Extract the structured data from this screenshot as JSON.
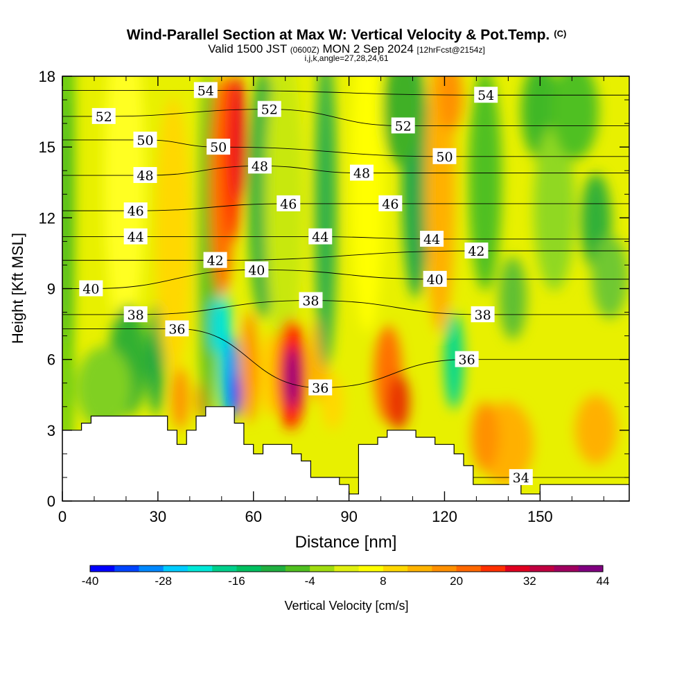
{
  "title": "Wind-Parallel Section at Max W: Vertical Velocity & Pot.Temp.",
  "title_mark": "(C)",
  "subtitle": {
    "pre": "Valid 1500 JST",
    "utc": "(0600Z)",
    "date": "MON 2 Sep 2024",
    "fcst": "[12hrFcst@2154z]"
  },
  "indices_line": "i,j,k,angle=27,28,24,61",
  "chart_data": {
    "type": "heatmap",
    "xlabel": "Distance [nm]",
    "ylabel": "Height [Kft MSL]",
    "xlim": [
      0,
      178
    ],
    "ylim": [
      0,
      18
    ],
    "x_ticks": [
      "0",
      "30",
      "60",
      "90",
      "120",
      "150"
    ],
    "y_ticks": [
      "0",
      "3",
      "6",
      "9",
      "12",
      "15",
      "18"
    ],
    "colorbar": {
      "label": "Vertical Velocity [cm/s]",
      "min": -40,
      "max": 44,
      "step": 4,
      "tick_labels": [
        "-40",
        "-28",
        "-16",
        "-4",
        "8",
        "20",
        "32",
        "44"
      ],
      "colors": [
        "#0000ff",
        "#0044ff",
        "#0088ff",
        "#00ccff",
        "#00e8d8",
        "#00d08c",
        "#00c060",
        "#20b040",
        "#50c020",
        "#a0dc10",
        "#e0f010",
        "#ffff00",
        "#ffd800",
        "#ffb400",
        "#ff9000",
        "#ff6800",
        "#ff3000",
        "#e00020",
        "#c00040",
        "#a00060",
        "#800080"
      ]
    },
    "terrain": [
      [
        0,
        2.2
      ],
      [
        0,
        3.0
      ],
      [
        6,
        3.0
      ],
      [
        6,
        3.3
      ],
      [
        9,
        3.3
      ],
      [
        9,
        3.6
      ],
      [
        33,
        3.6
      ],
      [
        33,
        3.0
      ],
      [
        36,
        3.0
      ],
      [
        36,
        2.4
      ],
      [
        39,
        2.4
      ],
      [
        39,
        3.0
      ],
      [
        42,
        3.0
      ],
      [
        42,
        3.6
      ],
      [
        45,
        3.6
      ],
      [
        45,
        4.0
      ],
      [
        54,
        4.0
      ],
      [
        54,
        3.3
      ],
      [
        57,
        3.3
      ],
      [
        57,
        2.4
      ],
      [
        60,
        2.4
      ],
      [
        60,
        2.0
      ],
      [
        63,
        2.0
      ],
      [
        63,
        2.4
      ],
      [
        72,
        2.4
      ],
      [
        72,
        2.0
      ],
      [
        75,
        2.0
      ],
      [
        75,
        1.7
      ],
      [
        78,
        1.7
      ],
      [
        78,
        1.0
      ],
      [
        87,
        1.0
      ],
      [
        87,
        0.7
      ],
      [
        90,
        0.7
      ],
      [
        90,
        0.3
      ],
      [
        93,
        0.3
      ],
      [
        93,
        2.4
      ],
      [
        99,
        2.4
      ],
      [
        99,
        2.7
      ],
      [
        102,
        2.7
      ],
      [
        102,
        3.0
      ],
      [
        111,
        3.0
      ],
      [
        111,
        2.7
      ],
      [
        117,
        2.7
      ],
      [
        117,
        2.4
      ],
      [
        123,
        2.4
      ],
      [
        123,
        2.0
      ],
      [
        126,
        2.0
      ],
      [
        126,
        1.5
      ],
      [
        129,
        1.5
      ],
      [
        129,
        0.7
      ],
      [
        144,
        0.7
      ],
      [
        144,
        0.3
      ],
      [
        150,
        0.3
      ],
      [
        150,
        0.7
      ],
      [
        178,
        0.7
      ],
      [
        178,
        0
      ]
    ],
    "theta_contours": [
      {
        "label": "54",
        "x_label": 45,
        "y_label": 17.4
      },
      {
        "label": "54",
        "x_label": 133,
        "y_label": 17.2
      },
      {
        "label": "52",
        "x_label": 13,
        "y_label": 16.3
      },
      {
        "label": "52",
        "x_label": 65,
        "y_label": 16.6
      },
      {
        "label": "52",
        "x_label": 107,
        "y_label": 15.9
      },
      {
        "label": "50",
        "x_label": 26,
        "y_label": 15.3
      },
      {
        "label": "50",
        "x_label": 49,
        "y_label": 15.0
      },
      {
        "label": "50",
        "x_label": 120,
        "y_label": 14.6
      },
      {
        "label": "48",
        "x_label": 26,
        "y_label": 13.8
      },
      {
        "label": "48",
        "x_label": 62,
        "y_label": 14.2
      },
      {
        "label": "48",
        "x_label": 94,
        "y_label": 13.9
      },
      {
        "label": "46",
        "x_label": 23,
        "y_label": 12.3
      },
      {
        "label": "46",
        "x_label": 71,
        "y_label": 12.6
      },
      {
        "label": "46",
        "x_label": 103,
        "y_label": 12.6
      },
      {
        "label": "44",
        "x_label": 23,
        "y_label": 11.2
      },
      {
        "label": "44",
        "x_label": 81,
        "y_label": 11.2
      },
      {
        "label": "44",
        "x_label": 116,
        "y_label": 11.1
      },
      {
        "label": "42",
        "x_label": 48,
        "y_label": 10.2
      },
      {
        "label": "42",
        "x_label": 130,
        "y_label": 10.6
      },
      {
        "label": "40",
        "x_label": 9,
        "y_label": 9.0
      },
      {
        "label": "40",
        "x_label": 61,
        "y_label": 9.8
      },
      {
        "label": "40",
        "x_label": 117,
        "y_label": 9.4
      },
      {
        "label": "38",
        "x_label": 23,
        "y_label": 7.9
      },
      {
        "label": "38",
        "x_label": 78,
        "y_label": 8.5
      },
      {
        "label": "38",
        "x_label": 132,
        "y_label": 7.9
      },
      {
        "label": "36",
        "x_label": 36,
        "y_label": 7.3
      },
      {
        "label": "36",
        "x_label": 81,
        "y_label": 4.8
      },
      {
        "label": "36",
        "x_label": 127,
        "y_label": 6.0
      },
      {
        "label": "34",
        "x_label": 144,
        "y_label": 1.0
      }
    ]
  }
}
